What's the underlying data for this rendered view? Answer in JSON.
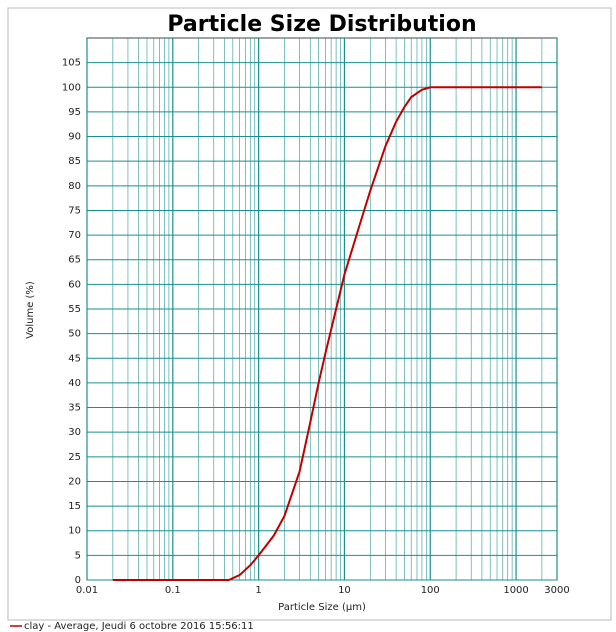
{
  "chart_data": {
    "type": "line",
    "title": "Particle Size Distribution",
    "xlabel": "Particle Size (µm)",
    "ylabel": "Volume (%)",
    "xscale": "log",
    "xlim": [
      0.01,
      3000
    ],
    "xticks": [
      0.01,
      0.1,
      1,
      10,
      100,
      1000,
      3000
    ],
    "x_minor_gridlines": [
      0.02,
      0.03,
      0.04,
      0.05,
      0.06,
      0.07,
      0.08,
      0.09,
      0.2,
      0.3,
      0.4,
      0.5,
      0.6,
      0.7,
      0.8,
      0.9,
      2,
      3,
      4,
      5,
      6,
      7,
      8,
      9,
      20,
      30,
      40,
      50,
      60,
      70,
      80,
      90,
      200,
      300,
      400,
      500,
      600,
      700,
      800,
      900,
      2000
    ],
    "ylim": [
      0,
      110
    ],
    "yticks": [
      0,
      5,
      10,
      15,
      20,
      25,
      30,
      35,
      40,
      45,
      50,
      55,
      60,
      65,
      70,
      75,
      80,
      85,
      90,
      95,
      100,
      105
    ],
    "grid": true,
    "grid_color": "#1a8f8f",
    "legend": "bottom-left",
    "series": [
      {
        "name": "clay - Average, Jeudi 6 octobre 2016 15:56:11",
        "color": "#c00000",
        "x": [
          0.02,
          0.1,
          0.3,
          0.45,
          0.6,
          0.8,
          1,
          1.5,
          2,
          3,
          4,
          5,
          6,
          8,
          10,
          15,
          20,
          30,
          40,
          50,
          60,
          80,
          100,
          200,
          2000
        ],
        "values": [
          0,
          0,
          0,
          0,
          1,
          3,
          5,
          9,
          13,
          22,
          32,
          40,
          46,
          55,
          62,
          72,
          79,
          88,
          93,
          96,
          98,
          99.5,
          100,
          100,
          100
        ]
      }
    ]
  }
}
